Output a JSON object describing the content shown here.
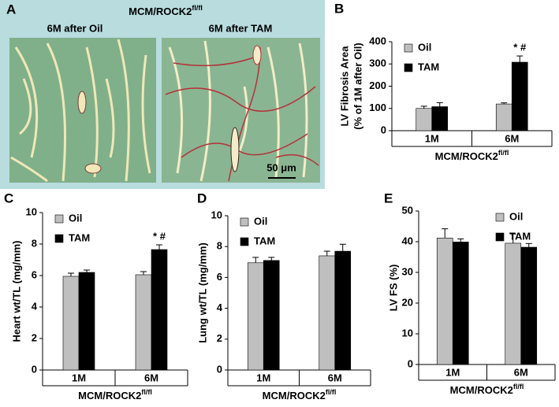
{
  "panel_a": {
    "panel": "A",
    "group_label": "MCM/ROCK2",
    "group_label_sup": "fl/fl",
    "left_caption": "6M after Oil",
    "right_caption": "6M after TAM",
    "scale_bar": "50 μm"
  },
  "chart_data": [
    {
      "type": "bar",
      "panel": "B",
      "ylabel": [
        "LV Fibrosis Area",
        "(% of  1M after Oil)"
      ],
      "categories": [
        "1M",
        "6M"
      ],
      "group_label": "MCM/ROCK2",
      "group_label_sup": "fl/fl",
      "series": [
        {
          "name": "Oil",
          "color": "#bfbfbf",
          "values": [
            100,
            120
          ],
          "errors": [
            10,
            5
          ]
        },
        {
          "name": "TAM",
          "color": "#000000",
          "values": [
            108,
            308
          ],
          "errors": [
            18,
            28
          ]
        }
      ],
      "ylim": [
        0,
        400
      ],
      "yticks": [
        0,
        100,
        200,
        300,
        400
      ],
      "legend": "upper left",
      "annotations": [
        {
          "text": "* #",
          "x": "6M"
        }
      ]
    },
    {
      "type": "bar",
      "panel": "C",
      "ylabel": [
        "Heart wt/TL (mg/mm)"
      ],
      "categories": [
        "1M",
        "6M"
      ],
      "group_label": "MCM/ROCK2",
      "group_label_sup": "fl/fl",
      "series": [
        {
          "name": "Oil",
          "color": "#bfbfbf",
          "values": [
            5.95,
            6.05
          ],
          "errors": [
            0.2,
            0.2
          ]
        },
        {
          "name": "TAM",
          "color": "#000000",
          "values": [
            6.2,
            7.65
          ],
          "errors": [
            0.15,
            0.3
          ]
        }
      ],
      "ylim": [
        0,
        10
      ],
      "yticks": [
        0,
        2,
        4,
        6,
        8,
        10
      ],
      "legend": "upper left",
      "annotations": [
        {
          "text": "* #",
          "x": "6M"
        }
      ]
    },
    {
      "type": "bar",
      "panel": "D",
      "ylabel": [
        "Lung wt/TL (mg/mm)"
      ],
      "categories": [
        "1M",
        "6M"
      ],
      "group_label": "MCM/ROCK2",
      "group_label_sup": "fl/fl",
      "series": [
        {
          "name": "Oil",
          "color": "#bfbfbf",
          "values": [
            6.95,
            7.4
          ],
          "errors": [
            0.35,
            0.3
          ]
        },
        {
          "name": "TAM",
          "color": "#000000",
          "values": [
            7.1,
            7.7
          ],
          "errors": [
            0.2,
            0.45
          ]
        }
      ],
      "ylim": [
        0,
        10
      ],
      "yticks": [
        0,
        2,
        4,
        6,
        8,
        10
      ],
      "legend": "upper left"
    },
    {
      "type": "bar",
      "panel": "E",
      "ylabel": [
        "LV FS (%)"
      ],
      "categories": [
        "1M",
        "6M"
      ],
      "group_label": "MCM/ROCK2",
      "group_label_sup": "fl/fl",
      "series": [
        {
          "name": "Oil",
          "color": "#bfbfbf",
          "values": [
            41.2,
            39.5
          ],
          "errors": [
            3,
            3
          ]
        },
        {
          "name": "TAM",
          "color": "#000000",
          "values": [
            39.9,
            38.2
          ],
          "errors": [
            1,
            1.2
          ]
        }
      ],
      "ylim": [
        0,
        50
      ],
      "yticks": [
        0,
        10,
        20,
        30,
        40,
        50
      ],
      "legend": "upper right"
    }
  ]
}
